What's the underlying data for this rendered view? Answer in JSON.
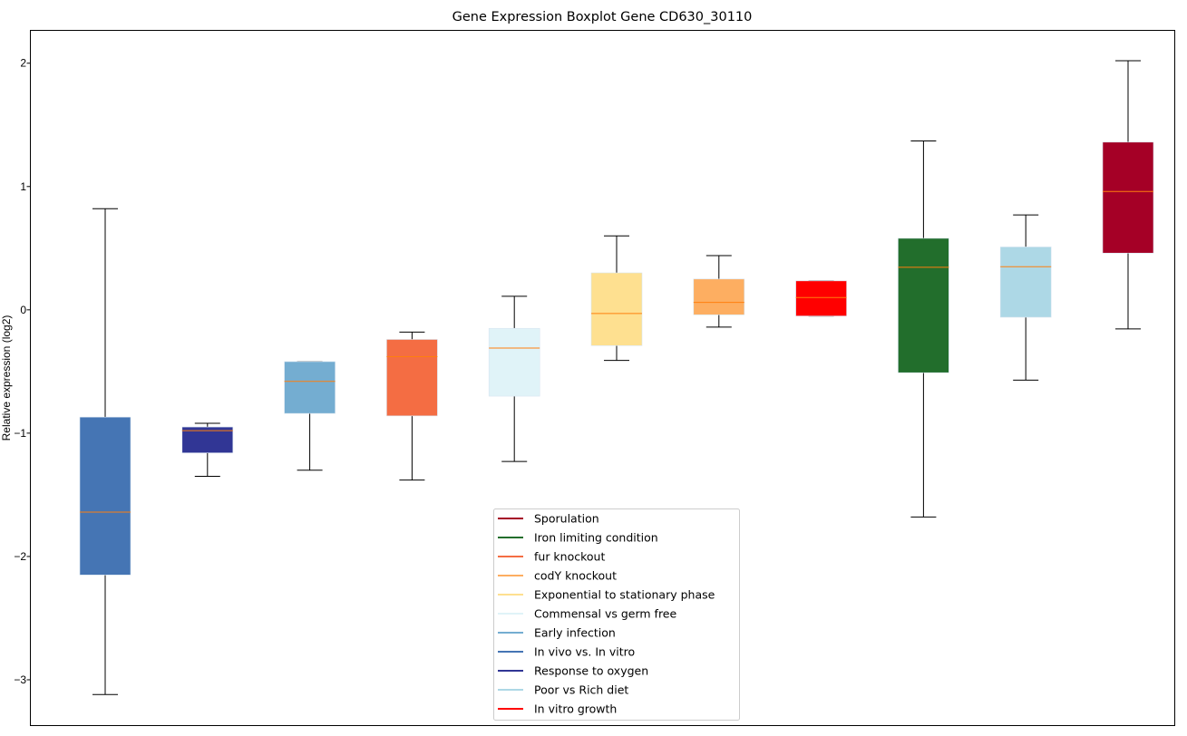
{
  "chart_data": {
    "type": "boxplot",
    "title": "Gene Expression Boxplot Gene CD630_30110",
    "xlabel": "",
    "ylabel": "Relative expression (log2)",
    "ylim": [
      -3.375,
      2.27
    ],
    "yticks": [
      2,
      1,
      0,
      -1,
      -2,
      -3
    ],
    "ytick_labels": [
      "2",
      "1",
      "0",
      "−1",
      "−2",
      "−3"
    ],
    "grid": false,
    "legend_position": "bottom-center",
    "median_color": "#ff7f0e",
    "series": [
      {
        "name": "In vivo vs. In vitro",
        "color": "#4575b4",
        "whislo": -3.12,
        "q1": -2.15,
        "median": -1.64,
        "q3": -0.87,
        "whishi": 0.82
      },
      {
        "name": "Response to oxygen",
        "color": "#313695",
        "whislo": -1.35,
        "q1": -1.16,
        "median": -0.98,
        "q3": -0.95,
        "whishi": -0.92
      },
      {
        "name": "Early infection",
        "color": "#74add1",
        "whislo": -1.3,
        "q1": -0.84,
        "median": -0.58,
        "q3": -0.42,
        "whishi": -0.42
      },
      {
        "name": "fur knockout",
        "color": "#f46d43",
        "whislo": -1.38,
        "q1": -0.86,
        "median": -0.38,
        "q3": -0.24,
        "whishi": -0.18
      },
      {
        "name": "Commensal vs germ free",
        "color": "#e0f3f8",
        "whislo": -1.23,
        "q1": -0.7,
        "median": -0.31,
        "q3": -0.15,
        "whishi": 0.11
      },
      {
        "name": "Exponential to stationary phase",
        "color": "#fee090",
        "whislo": -0.41,
        "q1": -0.29,
        "median": -0.03,
        "q3": 0.3,
        "whishi": 0.6
      },
      {
        "name": "codY knockout",
        "color": "#fdae61",
        "whislo": -0.14,
        "q1": -0.04,
        "median": 0.06,
        "q3": 0.25,
        "whishi": 0.44
      },
      {
        "name": "In vitro growth",
        "color": "#ff0000",
        "whislo": -0.05,
        "q1": -0.05,
        "median": 0.1,
        "q3": 0.235,
        "whishi": 0.235
      },
      {
        "name": "Iron limiting condition",
        "color": "#226e2c",
        "whislo": -1.68,
        "q1": -0.51,
        "median": 0.345,
        "q3": 0.58,
        "whishi": 1.37
      },
      {
        "name": "Poor vs Rich diet",
        "color": "#add8e6",
        "whislo": -0.57,
        "q1": -0.06,
        "median": 0.35,
        "q3": 0.51,
        "whishi": 0.77
      },
      {
        "name": "Sporulation",
        "color": "#a50026",
        "whislo": -0.155,
        "q1": 0.46,
        "median": 0.96,
        "q3": 1.36,
        "whishi": 2.02
      }
    ],
    "legend_order": [
      "Sporulation",
      "Iron limiting condition",
      "fur knockout",
      "codY knockout",
      "Exponential to stationary phase",
      "Commensal vs germ free",
      "Early infection",
      "In vivo vs. In vitro",
      "Response to oxygen",
      "Poor vs Rich diet",
      "In vitro growth"
    ]
  }
}
